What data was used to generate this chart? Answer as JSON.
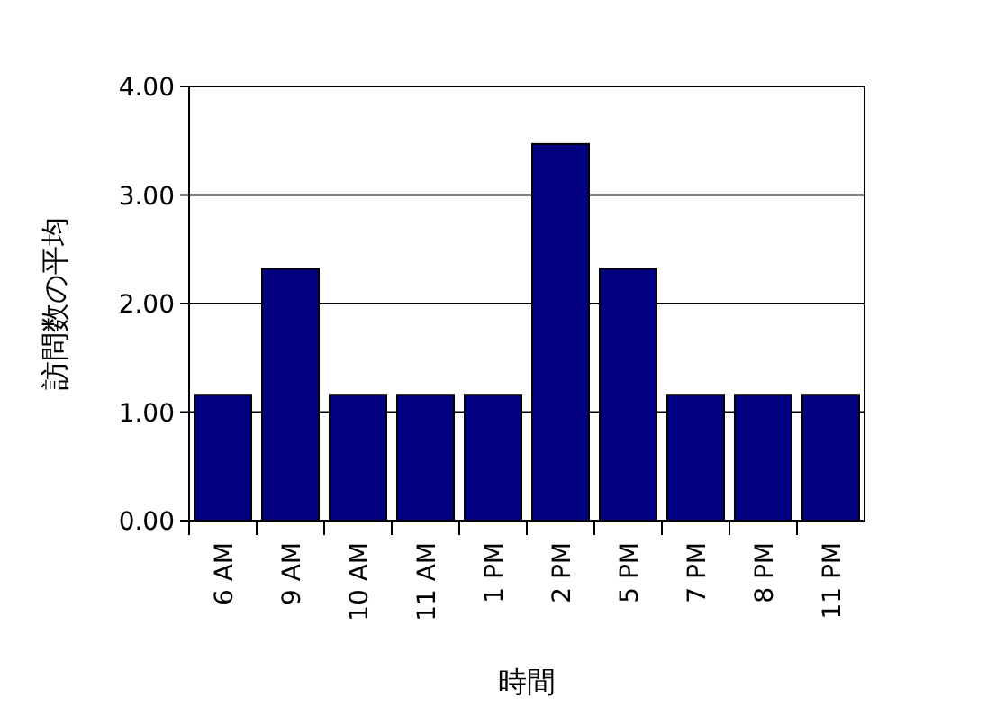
{
  "chart_data": {
    "type": "bar",
    "xlabel": "時間",
    "ylabel": "訪問数の平均",
    "categories": [
      "6 AM",
      "9 AM",
      "10 AM",
      "11 AM",
      "1 PM",
      "2 PM",
      "5 PM",
      "7 PM",
      "8 PM",
      "11 PM"
    ],
    "values": [
      1.16,
      2.32,
      1.16,
      1.16,
      1.16,
      3.47,
      2.32,
      1.16,
      1.16,
      1.16
    ],
    "color": "#000080",
    "ylim": [
      0,
      4
    ],
    "yticks": [
      {
        "value": 0,
        "label": "0.00"
      },
      {
        "value": 1,
        "label": "1.00"
      },
      {
        "value": 2,
        "label": "2.00"
      },
      {
        "value": 3,
        "label": "3.00"
      },
      {
        "value": 4,
        "label": "4.00"
      }
    ],
    "grid": "y"
  }
}
